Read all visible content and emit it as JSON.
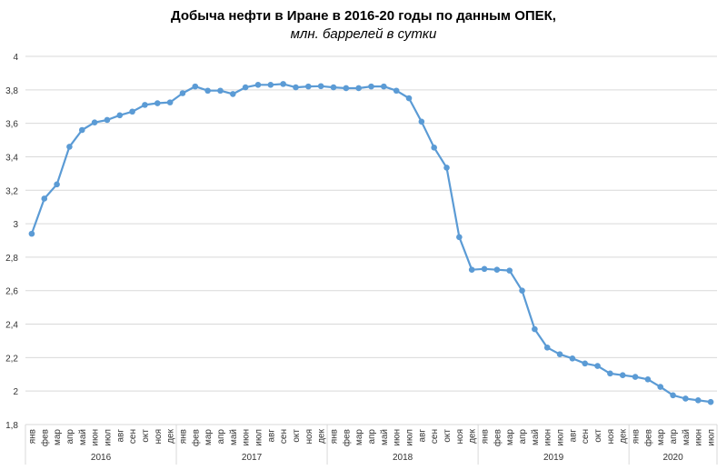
{
  "chart_data": {
    "type": "line",
    "title": "Добыча  нефти в Иране в 2016-20 годы по данным  ОПЕК,",
    "subtitle": "млн. баррелей в сутки",
    "xlabel": "",
    "ylabel": "",
    "ylim": [
      1.8,
      4
    ],
    "yticks": [
      "1,8",
      "2",
      "2,2",
      "2,4",
      "2,6",
      "2,8",
      "3",
      "3,2",
      "3,4",
      "3,6",
      "3,8",
      "4"
    ],
    "grid": true,
    "legend": "none",
    "series_color": "#5B9BD5",
    "years": [
      {
        "label": "2016",
        "months": [
          "янв",
          "фев",
          "мар",
          "апр",
          "май",
          "июн",
          "июл",
          "авг",
          "сен",
          "окт",
          "ноя",
          "дек"
        ]
      },
      {
        "label": "2017",
        "months": [
          "янв",
          "фев",
          "мар",
          "апр",
          "май",
          "июн",
          "июл",
          "авг",
          "сен",
          "окт",
          "ноя",
          "дек"
        ]
      },
      {
        "label": "2018",
        "months": [
          "янв",
          "фев",
          "мар",
          "апр",
          "май",
          "июн",
          "июл",
          "авг",
          "сен",
          "окт",
          "ноя",
          "дек"
        ]
      },
      {
        "label": "2019",
        "months": [
          "янв",
          "фев",
          "мар",
          "апр",
          "май",
          "июн",
          "июл",
          "авг",
          "сен",
          "окт",
          "ноя",
          "дек"
        ]
      },
      {
        "label": "2020",
        "months": [
          "янв",
          "фев",
          "мар",
          "апр",
          "май",
          "июн",
          "июл"
        ]
      }
    ],
    "values": [
      2.94,
      3.15,
      3.235,
      3.46,
      3.56,
      3.605,
      3.62,
      3.648,
      3.67,
      3.71,
      3.72,
      3.725,
      3.78,
      3.82,
      3.795,
      3.795,
      3.775,
      3.815,
      3.83,
      3.83,
      3.835,
      3.815,
      3.82,
      3.822,
      3.815,
      3.81,
      3.81,
      3.82,
      3.82,
      3.795,
      3.75,
      3.61,
      3.455,
      3.335,
      2.92,
      2.725,
      2.73,
      2.725,
      2.72,
      2.6,
      2.37,
      2.26,
      2.22,
      2.195,
      2.165,
      2.15,
      2.105,
      2.095,
      2.085,
      2.07,
      2.025,
      1.975,
      1.955,
      1.945,
      1.935
    ]
  }
}
